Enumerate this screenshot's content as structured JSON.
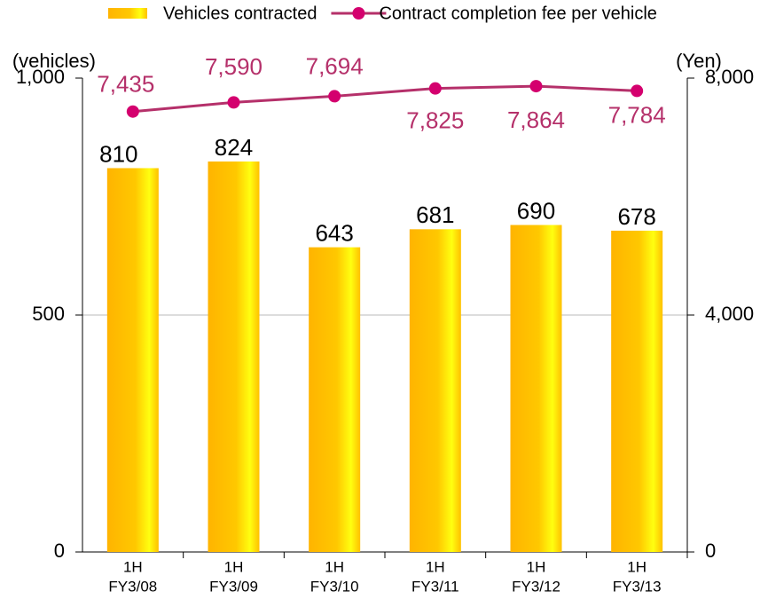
{
  "chart_data": {
    "type": "bar-line",
    "categories": [
      [
        "1H",
        "FY3/08"
      ],
      [
        "1H",
        "FY3/09"
      ],
      [
        "1H",
        "FY3/10"
      ],
      [
        "1H",
        "FY3/11"
      ],
      [
        "1H",
        "FY3/12"
      ],
      [
        "1H",
        "FY3/13"
      ]
    ],
    "series": [
      {
        "name": "Vehicles contracted",
        "type": "bar",
        "color": "#ffbb00",
        "values": [
          810,
          824,
          643,
          681,
          690,
          678
        ]
      },
      {
        "name": "Contract completion fee per vehicle",
        "type": "line",
        "axis": "y2",
        "color": "#b5306a",
        "marker_color": "#d4006e",
        "values": [
          7435,
          7590,
          7694,
          7825,
          7864,
          7784
        ],
        "value_labels": [
          "7,435",
          "7,590",
          "7,694",
          "7,825",
          "7,864",
          "7,784"
        ]
      }
    ],
    "ylabel": "(vehicles)",
    "y2label": "(Yen)",
    "ylim": [
      0,
      1000
    ],
    "yticks": [
      0,
      500,
      {
        "value": 1000,
        "label": "1,000"
      }
    ],
    "y2lim": [
      0,
      8000
    ],
    "y2ticks": [
      0,
      {
        "value": 4000,
        "label": "4,000"
      },
      {
        "value": 8000,
        "label": "8,000"
      }
    ],
    "grid": true,
    "legend": "top"
  }
}
